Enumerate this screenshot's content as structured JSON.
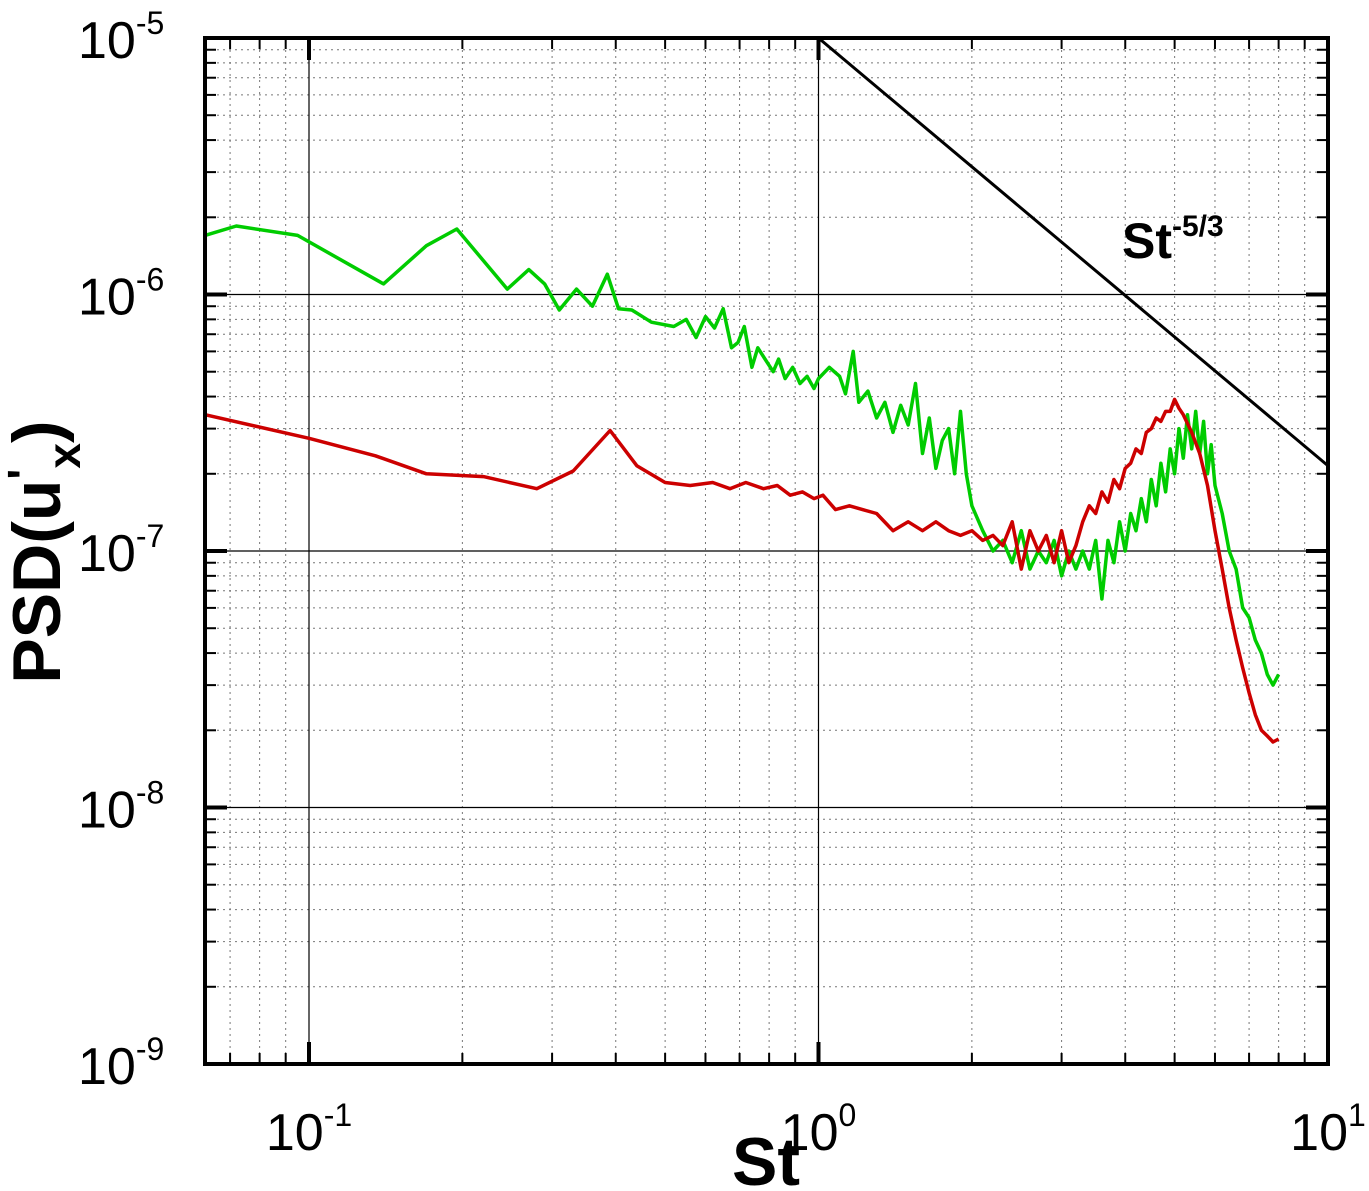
{
  "chart_data": {
    "type": "line",
    "xlabel": "St",
    "ylabel_main": "PSD(u",
    "ylabel_prime": "'",
    "ylabel_sub": "x",
    "ylabel_close": ")",
    "xscale": "log",
    "yscale": "log",
    "xlim": [
      0.0625,
      10
    ],
    "ylim": [
      1e-09,
      1e-05
    ],
    "grid": "major and minor (dotted)",
    "x_ticks": [
      {
        "value": 0.1,
        "base": "10",
        "exp": "-1"
      },
      {
        "value": 1,
        "base": "10",
        "exp": "0"
      },
      {
        "value": 10,
        "base": "10",
        "exp": "1"
      }
    ],
    "y_ticks": [
      {
        "value": 1e-09,
        "base": "10",
        "exp": "-9"
      },
      {
        "value": 1e-08,
        "base": "10",
        "exp": "-8"
      },
      {
        "value": 1e-07,
        "base": "10",
        "exp": "-7"
      },
      {
        "value": 1e-06,
        "base": "10",
        "exp": "-6"
      },
      {
        "value": 1e-05,
        "base": "10",
        "exp": "-5"
      }
    ],
    "reference_line": {
      "label_base": "St",
      "label_exp": "-5/3",
      "color": "#000000",
      "x": [
        1.0,
        10.0
      ],
      "y": [
        1e-05,
        2.15e-07
      ]
    },
    "series": [
      {
        "color": "#00cc00",
        "x": [
          0.0625,
          0.072,
          0.095,
          0.14,
          0.17,
          0.195,
          0.245,
          0.27,
          0.29,
          0.31,
          0.335,
          0.36,
          0.385,
          0.405,
          0.43,
          0.47,
          0.52,
          0.55,
          0.575,
          0.6,
          0.625,
          0.65,
          0.675,
          0.695,
          0.715,
          0.74,
          0.76,
          0.79,
          0.815,
          0.835,
          0.86,
          0.89,
          0.92,
          0.95,
          0.98,
          1.0,
          1.05,
          1.1,
          1.13,
          1.17,
          1.2,
          1.25,
          1.3,
          1.35,
          1.4,
          1.45,
          1.5,
          1.55,
          1.6,
          1.65,
          1.7,
          1.75,
          1.8,
          1.85,
          1.9,
          1.95,
          2.0,
          2.1,
          2.2,
          2.3,
          2.4,
          2.5,
          2.6,
          2.7,
          2.8,
          2.9,
          3.0,
          3.1,
          3.2,
          3.3,
          3.4,
          3.5,
          3.6,
          3.7,
          3.8,
          3.9,
          4.0,
          4.1,
          4.2,
          4.3,
          4.4,
          4.5,
          4.6,
          4.7,
          4.8,
          4.9,
          5.0,
          5.1,
          5.2,
          5.3,
          5.4,
          5.5,
          5.6,
          5.7,
          5.8,
          5.9,
          6.0,
          6.2,
          6.4,
          6.6,
          6.8,
          7.0,
          7.2,
          7.4,
          7.6,
          7.8,
          8.0
        ],
        "y": [
          1.7e-06,
          1.85e-06,
          1.7e-06,
          1.1e-06,
          1.55e-06,
          1.8e-06,
          1.05e-06,
          1.25e-06,
          1.1e-06,
          8.7e-07,
          1.05e-06,
          9e-07,
          1.2e-06,
          8.8e-07,
          8.7e-07,
          7.8e-07,
          7.5e-07,
          8e-07,
          6.8e-07,
          8.2e-07,
          7.4e-07,
          8.8e-07,
          6.2e-07,
          6.5e-07,
          7.5e-07,
          5.2e-07,
          6.2e-07,
          5.5e-07,
          5e-07,
          5.6e-07,
          4.7e-07,
          5.2e-07,
          4.5e-07,
          4.8e-07,
          4.3e-07,
          4.7e-07,
          5.2e-07,
          4.8e-07,
          4.1e-07,
          6e-07,
          3.8e-07,
          4.2e-07,
          3.3e-07,
          3.8e-07,
          2.9e-07,
          3.7e-07,
          3.1e-07,
          4.5e-07,
          2.4e-07,
          3.3e-07,
          2.1e-07,
          2.7e-07,
          3e-07,
          2e-07,
          3.5e-07,
          2e-07,
          1.5e-07,
          1.2e-07,
          1e-07,
          1.1e-07,
          9e-08,
          1.2e-07,
          8.5e-08,
          1e-07,
          9e-08,
          1.1e-07,
          8e-08,
          1e-07,
          8.5e-08,
          1e-07,
          8.5e-08,
          1.1e-07,
          6.5e-08,
          1.1e-07,
          9e-08,
          1.3e-07,
          1e-07,
          1.4e-07,
          1.2e-07,
          1.6e-07,
          1.3e-07,
          1.9e-07,
          1.5e-07,
          2.2e-07,
          1.7e-07,
          2.5e-07,
          2e-07,
          3e-07,
          2.3e-07,
          3.4e-07,
          2.5e-07,
          3.5e-07,
          2.4e-07,
          3.2e-07,
          2e-07,
          2.6e-07,
          1.8e-07,
          1.4e-07,
          1e-07,
          8.5e-08,
          6e-08,
          5.5e-08,
          4.5e-08,
          4e-08,
          3.3e-08,
          3e-08,
          3.3e-08
        ]
      },
      {
        "color": "#cc0000",
        "x": [
          0.0625,
          0.1,
          0.135,
          0.17,
          0.22,
          0.28,
          0.33,
          0.39,
          0.44,
          0.5,
          0.56,
          0.62,
          0.67,
          0.72,
          0.78,
          0.83,
          0.88,
          0.93,
          0.98,
          1.02,
          1.08,
          1.15,
          1.22,
          1.3,
          1.4,
          1.5,
          1.6,
          1.7,
          1.8,
          1.9,
          2.0,
          2.1,
          2.2,
          2.3,
          2.4,
          2.5,
          2.6,
          2.7,
          2.8,
          2.9,
          3.0,
          3.1,
          3.2,
          3.3,
          3.4,
          3.5,
          3.6,
          3.7,
          3.8,
          3.9,
          4.0,
          4.1,
          4.2,
          4.3,
          4.4,
          4.5,
          4.6,
          4.7,
          4.8,
          4.9,
          5.0,
          5.1,
          5.2,
          5.4,
          5.6,
          5.8,
          6.0,
          6.2,
          6.4,
          6.6,
          6.8,
          7.0,
          7.2,
          7.4,
          7.6,
          7.8,
          8.0
        ],
        "y": [
          3.4e-07,
          2.75e-07,
          2.35e-07,
          2e-07,
          1.95e-07,
          1.75e-07,
          2.05e-07,
          2.95e-07,
          2.15e-07,
          1.85e-07,
          1.8e-07,
          1.85e-07,
          1.75e-07,
          1.85e-07,
          1.75e-07,
          1.8e-07,
          1.65e-07,
          1.7e-07,
          1.6e-07,
          1.65e-07,
          1.45e-07,
          1.5e-07,
          1.45e-07,
          1.4e-07,
          1.2e-07,
          1.3e-07,
          1.2e-07,
          1.3e-07,
          1.2e-07,
          1.15e-07,
          1.2e-07,
          1.1e-07,
          1.15e-07,
          1.05e-07,
          1.3e-07,
          8.5e-08,
          1.2e-07,
          1e-07,
          1.15e-07,
          9e-08,
          1.2e-07,
          9e-08,
          1.05e-07,
          1.3e-07,
          1.5e-07,
          1.4e-07,
          1.7e-07,
          1.55e-07,
          1.9e-07,
          1.75e-07,
          2.1e-07,
          2.2e-07,
          2.5e-07,
          2.4e-07,
          2.9e-07,
          3e-07,
          3.3e-07,
          3.2e-07,
          3.5e-07,
          3.5e-07,
          3.9e-07,
          3.6e-07,
          3.4e-07,
          2.9e-07,
          2.4e-07,
          1.8e-07,
          1.2e-07,
          8.5e-08,
          6e-08,
          4.5e-08,
          3.5e-08,
          2.8e-08,
          2.3e-08,
          2e-08,
          1.9e-08,
          1.8e-08,
          1.85e-08
        ]
      }
    ]
  }
}
